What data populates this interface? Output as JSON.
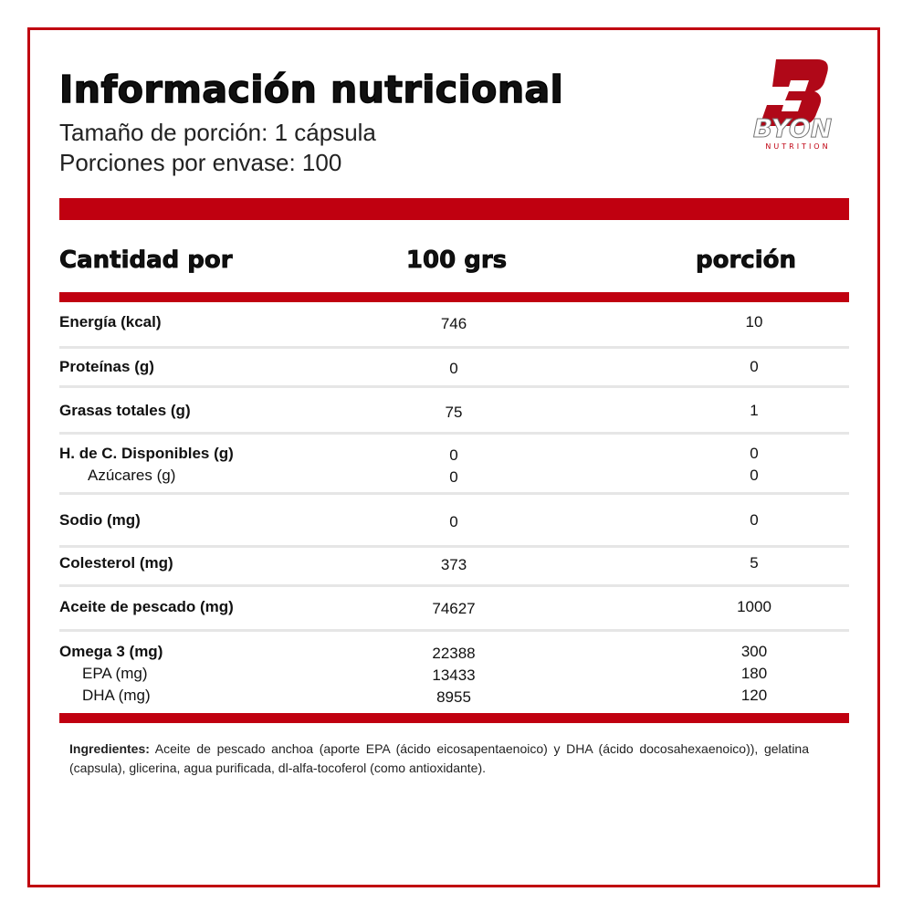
{
  "header": {
    "title": "Información nutricional",
    "serving_size": "Tamaño de porción: 1 cápsula",
    "servings_per_container": "Porciones por envase: 100"
  },
  "logo": {
    "brand": "BYON",
    "tagline": "NUTRITION"
  },
  "table": {
    "headers": [
      "Cantidad por",
      "100 grs",
      "porción"
    ],
    "rows": [
      [
        [
          "Energía (kcal)",
          746,
          10
        ]
      ],
      [
        [
          "Proteínas (g)",
          0,
          0
        ]
      ],
      [
        [
          "Grasas totales (g)",
          75,
          1
        ]
      ],
      [
        [
          "H. de C. Disponibles (g)",
          0,
          0
        ],
        [
          "Azúcares (g)",
          0,
          0
        ]
      ],
      [
        [
          "Sodio (mg)",
          0,
          0
        ]
      ],
      [
        [
          "Colesterol (mg)",
          373,
          5
        ]
      ],
      [
        [
          "Aceite de pescado (mg)",
          74627,
          1000
        ]
      ],
      [
        [
          "Omega 3 (mg)",
          22388,
          300
        ],
        [
          "EPA (mg)",
          13433,
          180
        ],
        [
          "DHA (mg)",
          8955,
          120
        ]
      ]
    ]
  },
  "ingredients": {
    "label": "Ingredientes:",
    "text": "Aceite de pescado anchoa (aporte EPA (ácido eicosapentaenoico) y DHA (ácido docosahexaenoico)), gelatina (capsula), glicerina, agua purificada, dl-alfa-tocoferol (como antioxidante)."
  }
}
